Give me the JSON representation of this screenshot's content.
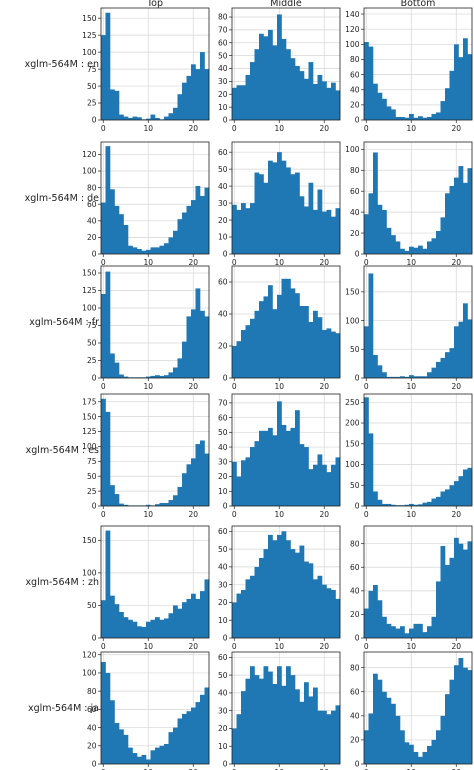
{
  "chart_data": {
    "type": "bar",
    "columns": [
      "Top",
      "Middle",
      "Bottom"
    ],
    "rows": [
      "xglm-564M : en",
      "xglm-564M : de",
      "xglm-564M : fr",
      "xglm-564M : es",
      "xglm-564M : zh",
      "xglm-564M : ja"
    ],
    "x_range": [
      -0.5,
      23.5
    ],
    "x_ticks": [
      0,
      10,
      20
    ],
    "bin_start": 0,
    "bin_width": 1,
    "bar_color": "#1f77b4",
    "grid": true,
    "panels": [
      [
        {
          "ylim": [
            0,
            165
          ],
          "y_ticks": [
            0,
            25,
            50,
            75,
            100,
            125,
            150
          ],
          "values": [
            125,
            158,
            45,
            43,
            8,
            5,
            3,
            5,
            4,
            1,
            2,
            8,
            3,
            1,
            5,
            10,
            18,
            38,
            55,
            65,
            82,
            75,
            100,
            75
          ]
        },
        {
          "ylim": [
            0,
            87
          ],
          "y_ticks": [
            0,
            10,
            20,
            30,
            40,
            50,
            60,
            70,
            80
          ],
          "values": [
            25,
            27,
            27,
            35,
            45,
            55,
            67,
            65,
            70,
            58,
            82,
            63,
            55,
            48,
            42,
            38,
            32,
            45,
            28,
            35,
            30,
            25,
            29,
            23
          ]
        },
        {
          "ylim": [
            0,
            148
          ],
          "y_ticks": [
            0,
            20,
            40,
            60,
            80,
            100,
            120,
            140
          ],
          "values": [
            103,
            97,
            48,
            36,
            28,
            18,
            14,
            4,
            4,
            3,
            8,
            3,
            5,
            3,
            4,
            8,
            10,
            25,
            42,
            65,
            100,
            83,
            108,
            87
          ]
        }
      ],
      [
        {
          "ylim": [
            0,
            135
          ],
          "y_ticks": [
            0,
            20,
            40,
            60,
            80,
            100,
            120
          ],
          "values": [
            62,
            130,
            78,
            58,
            48,
            35,
            10,
            8,
            6,
            4,
            5,
            8,
            8,
            10,
            13,
            20,
            28,
            42,
            50,
            58,
            65,
            82,
            70,
            80
          ]
        },
        {
          "ylim": [
            0,
            66
          ],
          "y_ticks": [
            0,
            10,
            20,
            30,
            40,
            50,
            60
          ],
          "values": [
            29,
            26,
            30,
            27,
            30,
            48,
            47,
            42,
            55,
            54,
            60,
            55,
            51,
            47,
            48,
            34,
            28,
            42,
            26,
            38,
            25,
            26,
            22,
            27
          ]
        },
        {
          "ylim": [
            0,
            107
          ],
          "y_ticks": [
            0,
            20,
            40,
            60,
            80,
            100
          ],
          "values": [
            38,
            58,
            97,
            47,
            42,
            25,
            18,
            12,
            5,
            3,
            7,
            6,
            8,
            5,
            12,
            15,
            22,
            35,
            58,
            65,
            73,
            84,
            68,
            82
          ]
        }
      ],
      [
        {
          "ylim": [
            0,
            160
          ],
          "y_ticks": [
            0,
            25,
            50,
            75,
            100,
            125,
            150
          ],
          "values": [
            120,
            152,
            35,
            22,
            5,
            2,
            1,
            1,
            1,
            1,
            2,
            3,
            4,
            3,
            4,
            8,
            15,
            28,
            52,
            88,
            98,
            128,
            96,
            88
          ]
        },
        {
          "ylim": [
            0,
            70
          ],
          "y_ticks": [
            0,
            20,
            40,
            60
          ],
          "values": [
            20,
            23,
            30,
            33,
            37,
            42,
            48,
            51,
            58,
            43,
            52,
            62,
            62,
            56,
            53,
            45,
            45,
            35,
            42,
            38,
            30,
            31,
            29,
            28
          ]
        },
        {
          "ylim": [
            0,
            195
          ],
          "y_ticks": [
            0,
            50,
            100,
            150
          ],
          "values": [
            90,
            182,
            40,
            22,
            10,
            2,
            2,
            2,
            3,
            2,
            5,
            3,
            3,
            3,
            10,
            18,
            28,
            35,
            45,
            52,
            90,
            98,
            130,
            102
          ]
        }
      ],
      [
        {
          "ylim": [
            0,
            188
          ],
          "y_ticks": [
            0,
            25,
            50,
            75,
            100,
            125,
            150,
            175
          ],
          "values": [
            180,
            158,
            35,
            20,
            4,
            2,
            1,
            1,
            1,
            1,
            2,
            1,
            3,
            5,
            5,
            10,
            18,
            32,
            55,
            70,
            80,
            104,
            110,
            88
          ]
        },
        {
          "ylim": [
            0,
            76
          ],
          "y_ticks": [
            0,
            10,
            20,
            30,
            40,
            50,
            60,
            70
          ],
          "values": [
            30,
            20,
            31,
            33,
            40,
            44,
            51,
            51,
            53,
            48,
            71,
            55,
            51,
            53,
            65,
            42,
            40,
            25,
            28,
            35,
            28,
            23,
            28,
            33
          ]
        },
        {
          "ylim": [
            0,
            270
          ],
          "y_ticks": [
            0,
            50,
            100,
            150,
            200,
            250
          ],
          "values": [
            262,
            175,
            35,
            15,
            5,
            5,
            3,
            2,
            2,
            3,
            5,
            3,
            4,
            8,
            10,
            18,
            22,
            35,
            40,
            50,
            60,
            72,
            88,
            92
          ]
        }
      ],
      [
        {
          "ylim": [
            0,
            172
          ],
          "y_ticks": [
            0,
            50,
            100,
            150
          ],
          "values": [
            58,
            165,
            65,
            52,
            40,
            32,
            28,
            25,
            18,
            17,
            25,
            28,
            32,
            28,
            30,
            38,
            50,
            45,
            55,
            60,
            68,
            60,
            72,
            90
          ]
        },
        {
          "ylim": [
            0,
            63
          ],
          "y_ticks": [
            0,
            10,
            20,
            30,
            40,
            50,
            60
          ],
          "values": [
            20,
            25,
            27,
            33,
            35,
            40,
            45,
            50,
            58,
            55,
            58,
            60,
            55,
            50,
            48,
            52,
            43,
            42,
            33,
            35,
            30,
            28,
            27,
            22
          ]
        },
        {
          "ylim": [
            0,
            95
          ],
          "y_ticks": [
            0,
            20,
            40,
            60,
            80
          ],
          "values": [
            25,
            40,
            45,
            32,
            18,
            12,
            10,
            8,
            10,
            4,
            8,
            12,
            12,
            5,
            10,
            18,
            48,
            78,
            62,
            68,
            85,
            80,
            75,
            82
          ]
        }
      ],
      [
        {
          "ylim": [
            0,
            123
          ],
          "y_ticks": [
            0,
            20,
            40,
            60,
            80,
            100,
            120
          ],
          "values": [
            112,
            100,
            70,
            45,
            38,
            32,
            18,
            12,
            8,
            10,
            5,
            15,
            18,
            20,
            22,
            35,
            40,
            50,
            55,
            58,
            62,
            68,
            76,
            84
          ]
        },
        {
          "ylim": [
            0,
            63
          ],
          "y_ticks": [
            0,
            10,
            20,
            30,
            40,
            50,
            60
          ],
          "values": [
            20,
            28,
            41,
            48,
            55,
            50,
            48,
            55,
            52,
            45,
            55,
            44,
            55,
            50,
            42,
            35,
            46,
            38,
            43,
            30,
            30,
            28,
            30,
            33
          ]
        },
        {
          "ylim": [
            0,
            93
          ],
          "y_ticks": [
            0,
            20,
            40,
            60,
            80
          ],
          "values": [
            28,
            42,
            75,
            70,
            60,
            55,
            50,
            40,
            28,
            18,
            16,
            10,
            6,
            10,
            15,
            20,
            28,
            40,
            58,
            70,
            82,
            88,
            80,
            78
          ]
        }
      ]
    ]
  }
}
